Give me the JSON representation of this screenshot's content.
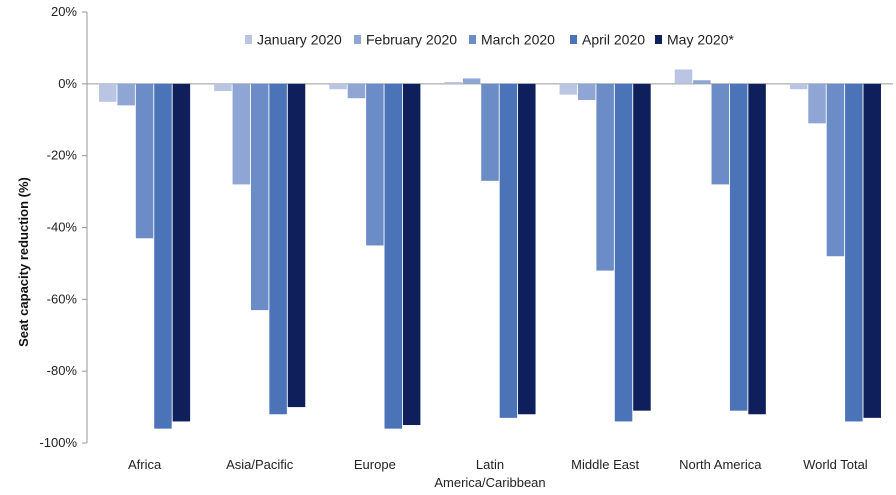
{
  "chart_data": {
    "type": "bar",
    "categories": [
      "Africa",
      "Asia/Pacific",
      "Europe",
      "Latin America/Caribbean",
      "Middle East",
      "North America",
      "World Total"
    ],
    "category_display": [
      [
        "Africa"
      ],
      [
        "Asia/Pacific"
      ],
      [
        "Europe"
      ],
      [
        "Latin",
        "America/Caribbean"
      ],
      [
        "Middle East"
      ],
      [
        "North America"
      ],
      [
        "World Total"
      ]
    ],
    "series": [
      {
        "name": "January 2020",
        "color": "#b9c5e3",
        "values": [
          -5,
          -2,
          -1.5,
          0.5,
          -3,
          4,
          -1.5
        ]
      },
      {
        "name": "February 2020",
        "color": "#8fa6d4",
        "values": [
          -6,
          -28,
          -4,
          1.5,
          -4.5,
          1,
          -11
        ]
      },
      {
        "name": "March 2020",
        "color": "#6b8cc7",
        "values": [
          -43,
          -63,
          -45,
          -27,
          -52,
          -28,
          -48
        ]
      },
      {
        "name": "April 2020",
        "color": "#4a73b8",
        "values": [
          -96,
          -92,
          -96,
          -93,
          -94,
          -91,
          -94
        ]
      },
      {
        "name": "May 2020*",
        "color": "#0f1f5c",
        "values": [
          -94,
          -90,
          -95,
          -92,
          -91,
          -92,
          -93
        ]
      }
    ],
    "ylabel": "Seat capacity reduction (%)",
    "xlabel": "",
    "ylim": [
      -100,
      20
    ],
    "yticks": [
      20,
      0,
      -20,
      -40,
      -60,
      -80,
      -100
    ],
    "ytick_labels": [
      "20%",
      "0%",
      "-20%",
      "-40%",
      "-60%",
      "-80%",
      "-100%"
    ],
    "legend_position": "top",
    "grid": false
  }
}
